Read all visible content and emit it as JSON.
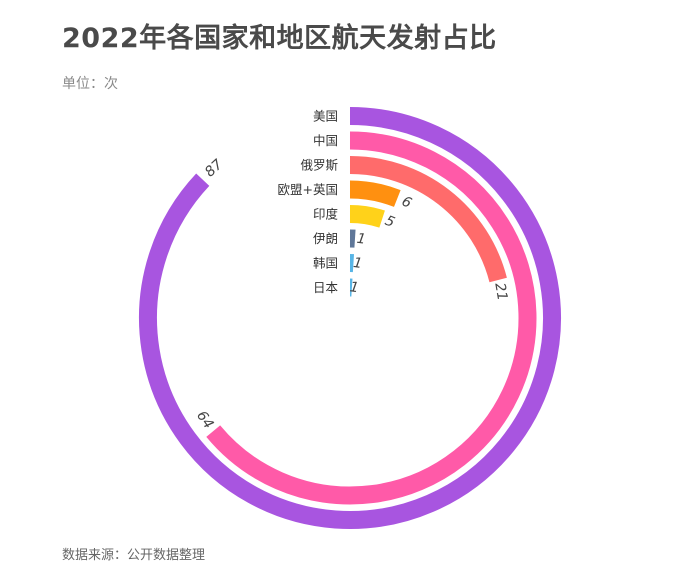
{
  "title": "2022年各国家和地区航天发射占比",
  "subtitle": "单位：次",
  "source": "数据来源：公开数据整理",
  "chart_data": {
    "type": "radial-bar",
    "title": "2022年各国家和地区航天发射占比",
    "unit": "单位：次",
    "max": 100,
    "categories": [
      "美国",
      "中国",
      "俄罗斯",
      "欧盟+英国",
      "印度",
      "伊朗",
      "韩国",
      "日本"
    ],
    "values": [
      87,
      64,
      21,
      6,
      5,
      1,
      1,
      1
    ],
    "value_labels": [
      "87",
      "64",
      "21",
      "6",
      "5",
      "1",
      "1",
      "1"
    ],
    "colors": [
      "#a855e0",
      "#ff5aa8",
      "#ff6b6b",
      "#ff9010",
      "#ffd21a",
      "#5f7799",
      "#58b5e6",
      "#58b5e6"
    ]
  }
}
